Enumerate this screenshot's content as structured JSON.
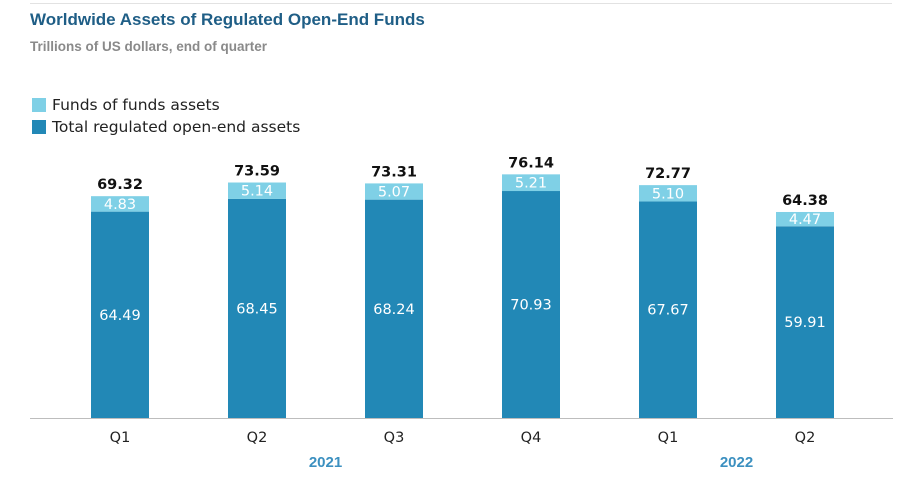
{
  "chart_data": {
    "type": "bar",
    "stacked": true,
    "title": "Worldwide Assets of Regulated Open-End Funds",
    "subtitle": "Trillions of US dollars, end of quarter",
    "categories": [
      "Q1",
      "Q2",
      "Q3",
      "Q4",
      "Q1",
      "Q2"
    ],
    "groups": [
      {
        "label": "2021",
        "categories": [
          0,
          1,
          2,
          3
        ]
      },
      {
        "label": "2022",
        "categories": [
          4,
          5
        ]
      }
    ],
    "series": [
      {
        "name": "Total regulated open-end assets",
        "color": "#2288b6",
        "values": [
          64.49,
          68.45,
          68.24,
          70.93,
          67.67,
          59.91
        ],
        "labels": [
          "64.49",
          "68.45",
          "68.24",
          "70.93",
          "67.67",
          "59.91"
        ]
      },
      {
        "name": "Funds of funds assets",
        "color": "#7fd0e6",
        "values": [
          4.83,
          5.14,
          5.07,
          5.21,
          5.1,
          4.47
        ],
        "labels": [
          "4.83",
          "5.14",
          "5.07",
          "5.21",
          "5.10",
          "4.47"
        ]
      }
    ],
    "totals": [
      "69.32",
      "73.59",
      "73.31",
      "76.14",
      "72.77",
      "64.38"
    ],
    "ylim": [
      0,
      80
    ],
    "legend": "top-left",
    "grid": false
  }
}
